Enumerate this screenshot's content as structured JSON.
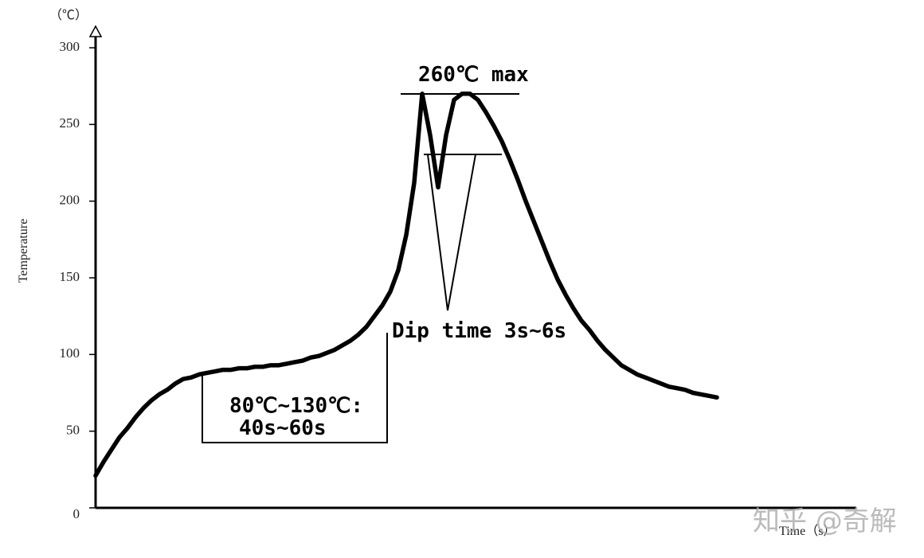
{
  "chart_data": {
    "type": "line",
    "y_unit": "（℃）",
    "ylabel": "Temperature",
    "xlabel": "Time（s）",
    "annotations": [
      "260℃ max",
      "Dip time 3s~6s",
      "80℃~130℃:",
      "40s~60s"
    ],
    "watermark": "知乎 @奇解",
    "color": "#000000",
    "ylim": [
      0,
      300
    ],
    "yticks": [
      0,
      50,
      100,
      150,
      200,
      250,
      300
    ],
    "categories": [
      null,
      null,
      null,
      null,
      null,
      null,
      null,
      null,
      null,
      null,
      null,
      null,
      null,
      null,
      null,
      null,
      null,
      null,
      null,
      null,
      null,
      null,
      null,
      null,
      null,
      null,
      null,
      null,
      null,
      null,
      null,
      null,
      null,
      null,
      null,
      null,
      null,
      null,
      null,
      null,
      null,
      null,
      null,
      null,
      null,
      null,
      null,
      null,
      null,
      null,
      null,
      null,
      null,
      null,
      null,
      null,
      null,
      null,
      null,
      null,
      null,
      null,
      null,
      null,
      null,
      null,
      null,
      null,
      null,
      null,
      null,
      null,
      null,
      null,
      null,
      null,
      null,
      null,
      null
    ],
    "values": [
      21,
      30,
      38,
      46,
      52,
      59,
      65,
      70,
      74,
      77,
      81,
      84,
      85,
      87,
      88,
      89,
      90,
      90,
      91,
      91,
      92,
      92,
      93,
      93,
      94,
      95,
      96,
      98,
      99,
      101,
      103,
      106,
      109,
      113,
      118,
      125,
      132,
      141,
      155,
      178,
      212,
      270,
      243,
      209,
      243,
      266,
      270,
      270,
      266,
      258,
      249,
      239,
      227,
      214,
      200,
      187,
      174,
      161,
      149,
      139,
      130,
      122,
      116,
      109,
      103,
      98,
      93,
      90,
      87,
      85,
      83,
      81,
      79,
      78,
      77,
      75,
      74,
      73,
      72
    ]
  }
}
